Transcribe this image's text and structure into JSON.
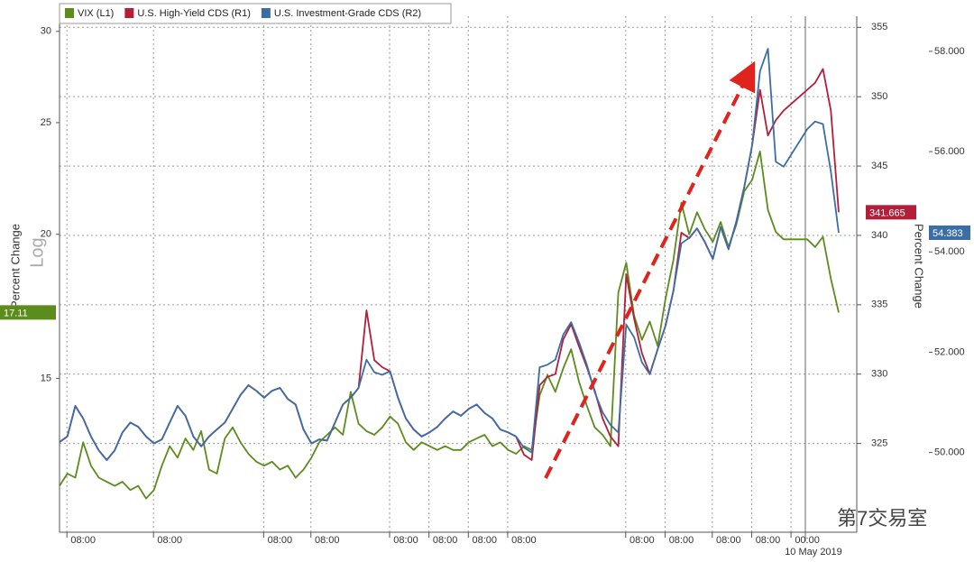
{
  "chart_data": {
    "type": "line",
    "legend": "upper left",
    "grid": true,
    "ylog": true,
    "ylabel": "Percent Change",
    "ylabel_note": "Log",
    "y2label": "Percent Change",
    "watermark": "第7交易室",
    "date_label": "10 May 2019",
    "categories": [
      null,
      null,
      null,
      "08:00",
      null,
      null,
      null,
      null,
      null,
      null,
      null,
      null,
      null,
      null,
      "08:00",
      null,
      null,
      null,
      null,
      null,
      null,
      null,
      null,
      null,
      null,
      null,
      null,
      null,
      "08:00",
      null,
      null,
      null,
      null,
      null,
      "08:00",
      null,
      null,
      null,
      null,
      null,
      null,
      null,
      null,
      null,
      "08:00",
      null,
      null,
      null,
      null,
      "08:00",
      null,
      null,
      null,
      null,
      "08:00",
      null,
      null,
      null,
      null,
      "08:00",
      null,
      null,
      null,
      null,
      null,
      null,
      null,
      null,
      null,
      null,
      null,
      null,
      null,
      null,
      "08:00",
      null,
      null,
      null,
      null,
      "08:00",
      null,
      null,
      null,
      null,
      null,
      "08:00",
      null,
      null,
      null,
      null,
      "08:00",
      null,
      null,
      null,
      null,
      "00:00",
      null,
      null,
      null,
      null
    ],
    "ylim": [
      11.03,
      30.92
    ],
    "yticks": [
      15,
      20,
      25,
      30
    ],
    "y2lim": [
      318.6,
      355.8
    ],
    "y2ticks": [
      325,
      330,
      335,
      340,
      345,
      350,
      355
    ],
    "y3lim": [
      48.41,
      58.7
    ],
    "y3ticks": [
      {
        "value": 50,
        "label": "50.000"
      },
      {
        "value": 52,
        "label": "52.000"
      },
      {
        "value": 54,
        "label": "54.000"
      },
      {
        "value": 56,
        "label": "56.000"
      },
      {
        "value": 58,
        "label": "58.000"
      }
    ],
    "series": [
      {
        "name": "VIX (L1)",
        "color": "#5b8c1c",
        "axis": "y",
        "values": [
          12.1,
          12.4,
          12.3,
          13.2,
          12.6,
          12.3,
          12.2,
          12.1,
          12.2,
          12.0,
          12.1,
          11.8,
          12.0,
          12.6,
          13.1,
          12.8,
          13.3,
          13.0,
          13.5,
          12.5,
          12.4,
          13.3,
          13.6,
          13.2,
          12.9,
          12.7,
          12.6,
          12.7,
          12.5,
          12.6,
          12.3,
          12.5,
          12.8,
          13.2,
          13.4,
          13.6,
          13.4,
          14.6,
          13.7,
          13.5,
          13.4,
          13.6,
          13.9,
          13.7,
          13.2,
          13.0,
          13.2,
          13.1,
          13.0,
          13.1,
          13.0,
          13.0,
          13.2,
          13.3,
          13.4,
          13.1,
          13.2,
          13.0,
          12.9,
          13.1,
          13.0,
          14.5,
          15.1,
          14.6,
          15.3,
          15.9,
          14.9,
          14.2,
          13.6,
          13.4,
          13.1,
          17.8,
          18.9,
          17.0,
          16.2,
          16.8,
          16.0,
          17.6,
          19.0,
          21.3,
          20.0,
          20.9,
          20.2,
          19.7,
          20.5,
          19.5,
          20.4,
          21.8,
          22.3,
          23.6,
          21.0,
          20.1,
          19.8,
          19.8,
          19.8,
          19.8,
          19.5,
          19.9,
          18.3,
          17.11
        ]
      },
      {
        "name": "U.S. High-Yield CDS (R1)",
        "color": "#b31f3b",
        "axis": "y2",
        "values": [
          325.1,
          325.5,
          327.7,
          326.8,
          325.5,
          324.5,
          323.8,
          324.5,
          325.8,
          326.5,
          326.2,
          325.5,
          325.0,
          325.3,
          326.5,
          327.7,
          327.0,
          325.5,
          324.8,
          325.5,
          326.0,
          326.5,
          327.5,
          328.5,
          329.2,
          328.8,
          328.3,
          328.8,
          329.0,
          328.2,
          327.8,
          326.0,
          325.0,
          325.3,
          325.2,
          326.5,
          327.8,
          328.3,
          329.0,
          334.6,
          331.0,
          330.5,
          330.2,
          328.3,
          326.8,
          326.0,
          325.5,
          325.8,
          326.2,
          326.8,
          327.3,
          327.0,
          327.5,
          327.8,
          327.2,
          326.8,
          326.0,
          325.8,
          325.5,
          324.2,
          323.8,
          329.2,
          329.8,
          330.0,
          332.5,
          333.6,
          332.0,
          330.5,
          328.8,
          326.8,
          325.5,
          324.8,
          337.2,
          334.0,
          331.5,
          330.0,
          331.8,
          333.5,
          336.0,
          340.2,
          339.8,
          340.5,
          339.5,
          338.3,
          340.6,
          339.0,
          341.0,
          343.5,
          346.5,
          350.5,
          347.2,
          348.3,
          349.0,
          349.5,
          350.0,
          350.5,
          351.0,
          352.0,
          349.0,
          341.665
        ]
      },
      {
        "name": "U.S. Investment-Grade CDS (R2)",
        "color": "#3b6ea5",
        "axis": "y3",
        "values": [
          50.21,
          50.32,
          50.93,
          50.68,
          50.32,
          50.04,
          49.85,
          50.04,
          50.4,
          50.6,
          50.51,
          50.32,
          50.18,
          50.26,
          50.6,
          50.93,
          50.73,
          50.32,
          50.12,
          50.32,
          50.46,
          50.6,
          50.87,
          51.15,
          51.34,
          51.23,
          51.09,
          51.23,
          51.29,
          51.07,
          50.96,
          50.46,
          50.18,
          50.26,
          50.24,
          50.6,
          50.96,
          51.09,
          51.29,
          51.85,
          51.6,
          51.55,
          51.62,
          51.09,
          50.68,
          50.46,
          50.32,
          50.4,
          50.51,
          50.68,
          50.82,
          50.73,
          50.87,
          50.96,
          50.79,
          50.68,
          50.46,
          50.4,
          50.32,
          50.1,
          50.0,
          51.7,
          51.75,
          51.85,
          52.35,
          52.6,
          52.2,
          51.75,
          51.2,
          50.8,
          50.55,
          50.4,
          52.55,
          52.3,
          51.8,
          51.56,
          52.06,
          52.53,
          53.23,
          54.17,
          54.28,
          54.47,
          54.2,
          53.86,
          54.5,
          54.06,
          54.61,
          55.3,
          56.13,
          57.6,
          58.05,
          55.8,
          55.7,
          55.95,
          56.2,
          56.45,
          56.6,
          56.55,
          55.6,
          54.383
        ]
      }
    ]
  }
}
